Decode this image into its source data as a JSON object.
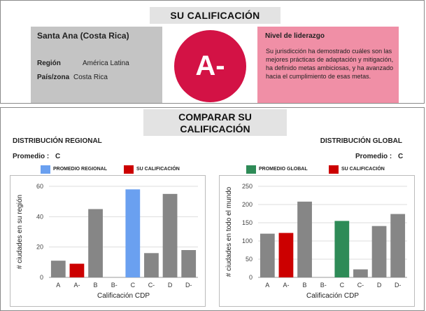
{
  "header": {
    "title": "SU CALIFICACIÓN"
  },
  "city": {
    "name": "Santa Ana (Costa Rica)",
    "region_label": "Región",
    "region_value": "América Latina",
    "country_label": "País/zona",
    "country_value": "Costa Rica"
  },
  "grade": "A-",
  "level": {
    "title": "Nivel de liderazgo",
    "description": "Su jurisdicción ha demostrado cuáles son las mejores prácticas de adaptación y mitigación, ha definido metas ambiciosas, y ha avanzado hacia el cumplimiento de esas metas."
  },
  "compare": {
    "title": "COMPARAR SU CALIFICACIÓN"
  },
  "regional": {
    "section_label": "DISTRIBUCIÓN REGIONAL",
    "average_label": "Promedio :",
    "average_value": "C",
    "legend_avg": "PROMEDIO REGIONAL",
    "legend_yours": "SU CALIFICACIÓN"
  },
  "global": {
    "section_label": "DISTRIBUCIÓN GLOBAL",
    "average_label": "Promedio :",
    "average_value": "C",
    "legend_avg": "PROMEDIO GLOBAL",
    "legend_yours": "SU CALIFICACIÓN"
  },
  "colors": {
    "grade": "#d31245",
    "level_box": "#f08fa6",
    "bar_default": "#868686",
    "your_grade": "#cc0000",
    "regional_avg": "#6aa0f0",
    "global_avg": "#2e8b57"
  },
  "chart_data": [
    {
      "type": "bar",
      "categories": [
        "A",
        "A-",
        "B",
        "B-",
        "C",
        "C-",
        "D",
        "D-"
      ],
      "values": [
        11,
        9,
        45,
        0,
        58,
        16,
        55,
        18
      ],
      "highlight": {
        "your_grade": "A-",
        "average": "C"
      },
      "xlabel": "Calificación CDP",
      "ylabel": "# ciudades en su región",
      "ylim": [
        0,
        60
      ],
      "yticks": [
        0,
        20,
        40,
        60
      ],
      "grid": true
    },
    {
      "type": "bar",
      "categories": [
        "A",
        "A-",
        "B",
        "B-",
        "C",
        "C-",
        "D",
        "D-"
      ],
      "values": [
        120,
        122,
        208,
        0,
        155,
        22,
        141,
        174
      ],
      "highlight": {
        "your_grade": "A-",
        "average": "C"
      },
      "xlabel": "Calificación CDP",
      "ylabel": "# ciudades en todo el mundo",
      "ylim": [
        0,
        250
      ],
      "yticks": [
        0,
        50,
        100,
        150,
        200,
        250
      ],
      "grid": true
    }
  ]
}
